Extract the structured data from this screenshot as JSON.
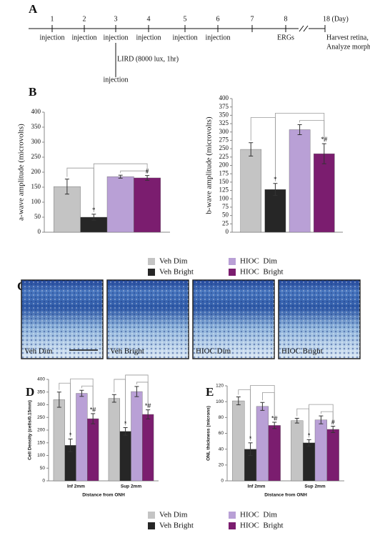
{
  "panels": {
    "a": "A",
    "b": "B",
    "c": "C",
    "d": "D",
    "e": "E"
  },
  "timeline": {
    "days": [
      "1",
      "2",
      "3",
      "4",
      "5",
      "6",
      "7",
      "8",
      "18 (Day)"
    ],
    "events": [
      [
        "injection"
      ],
      [
        "injection"
      ],
      [
        "injection"
      ],
      [
        "injection"
      ],
      [
        "injection"
      ],
      [
        "injection"
      ],
      null,
      [
        "ERGs"
      ],
      [
        "Harvest retina,",
        "Analyze morphology"
      ]
    ],
    "light": {
      "label": "LIRD (8000 lux, 1hr)",
      "event": "injection"
    }
  },
  "images": {
    "labels": [
      "Veh Dim",
      "Veh Bright",
      "HIOC Dim",
      "HIOC Bright"
    ]
  },
  "chart_data": [
    {
      "type": "bar",
      "y_label": "a-wave amplitude (microvolts)",
      "categories": [
        null
      ],
      "series": [
        {
          "name": "Veh Dim",
          "color": "#c4c4c4",
          "values": [
            152
          ],
          "errors": [
            25
          ]
        },
        {
          "name": "Veh Bright",
          "color": "#262626",
          "values": [
            50
          ],
          "errors": [
            10
          ]
        },
        {
          "name": "HIOC  Dim",
          "color": "#b9a0d6",
          "values": [
            185
          ],
          "errors": [
            5
          ]
        },
        {
          "name": "HIOC  Bright",
          "color": "#7b1d6f",
          "values": [
            181
          ],
          "errors": [
            8
          ]
        }
      ],
      "ylim": [
        0,
        400
      ],
      "yticks": [
        0,
        50,
        100,
        150,
        200,
        250,
        300,
        350,
        400
      ],
      "annotations": [
        {
          "text": "*",
          "series": 1,
          "category": 0
        },
        {
          "text": "#",
          "series": 3,
          "category": 0
        }
      ]
    },
    {
      "type": "bar",
      "y_label": "b-wave amplitude (microvolts)",
      "categories": [
        null
      ],
      "series": [
        {
          "name": "Veh Dim",
          "color": "#c4c4c4",
          "values": [
            248
          ],
          "errors": [
            20
          ]
        },
        {
          "name": "Veh Bright",
          "color": "#262626",
          "values": [
            128
          ],
          "errors": [
            18
          ]
        },
        {
          "name": "HIOC  Dim",
          "color": "#b9a0d6",
          "values": [
            307
          ],
          "errors": [
            15
          ]
        },
        {
          "name": "HIOC  Bright",
          "color": "#7b1d6f",
          "values": [
            235
          ],
          "errors": [
            30
          ]
        }
      ],
      "ylim": [
        0,
        400
      ],
      "yticks": [
        0,
        25,
        50,
        75,
        100,
        125,
        150,
        175,
        200,
        225,
        250,
        275,
        300,
        325,
        350,
        375,
        400
      ],
      "annotations": [
        {
          "text": "*",
          "series": 1,
          "category": 0
        },
        {
          "text": "*#",
          "series": 3,
          "category": 0
        }
      ]
    },
    {
      "type": "bar",
      "y_label": "Cell Density (cells/0.15mm)",
      "x_label": "Distance from ONH",
      "categories": [
        "Inf 2mm",
        "Sup 2mm"
      ],
      "series": [
        {
          "name": "Veh Dim",
          "color": "#c4c4c4",
          "values": [
            320,
            325
          ],
          "errors": [
            30,
            15
          ]
        },
        {
          "name": "Veh Bright",
          "color": "#262626",
          "values": [
            140,
            195
          ],
          "errors": [
            25,
            15
          ]
        },
        {
          "name": "HIOC  Dim",
          "color": "#b9a0d6",
          "values": [
            345,
            352
          ],
          "errors": [
            12,
            20
          ]
        },
        {
          "name": "HIOC  Bright",
          "color": "#7b1d6f",
          "values": [
            245,
            262
          ],
          "errors": [
            20,
            18
          ]
        }
      ],
      "ylim": [
        0,
        400
      ],
      "yticks": [
        0,
        50,
        100,
        150,
        200,
        250,
        300,
        350,
        400
      ],
      "annotations": [
        {
          "text": "*",
          "series": 1,
          "category": 0
        },
        {
          "text": "*#",
          "series": 3,
          "category": 0
        },
        {
          "text": "*",
          "series": 1,
          "category": 1
        },
        {
          "text": "*#",
          "series": 3,
          "category": 1
        }
      ]
    },
    {
      "type": "bar",
      "y_label": "ONL thickness (microns)",
      "x_label": "Distance from ONH",
      "categories": [
        "Inf 2mm",
        "Sup 2mm"
      ],
      "series": [
        {
          "name": "Veh Dim",
          "color": "#c4c4c4",
          "values": [
            101,
            76
          ],
          "errors": [
            5,
            3
          ]
        },
        {
          "name": "Veh Bright",
          "color": "#262626",
          "values": [
            40,
            48
          ],
          "errors": [
            8,
            4
          ]
        },
        {
          "name": "HIOC  Dim",
          "color": "#b9a0d6",
          "values": [
            94,
            77
          ],
          "errors": [
            5,
            5
          ]
        },
        {
          "name": "HIOC  Bright",
          "color": "#7b1d6f",
          "values": [
            70,
            65
          ],
          "errors": [
            4,
            4
          ]
        }
      ],
      "ylim": [
        0,
        120
      ],
      "yticks": [
        0,
        20,
        40,
        60,
        80,
        100,
        120
      ],
      "annotations": [
        {
          "text": "*",
          "series": 1,
          "category": 0
        },
        {
          "text": "*#",
          "series": 3,
          "category": 0
        },
        {
          "text": "*",
          "series": 1,
          "category": 1
        },
        {
          "text": "#",
          "series": 3,
          "category": 1
        }
      ]
    }
  ]
}
